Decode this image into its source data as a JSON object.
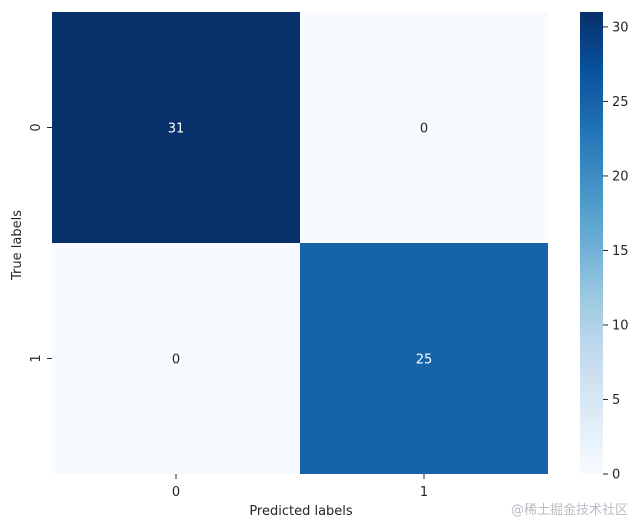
{
  "chart_data": {
    "type": "heatmap",
    "title": "",
    "xlabel": "Predicted labels",
    "ylabel": "True labels",
    "x_categories": [
      "0",
      "1"
    ],
    "y_categories": [
      "0",
      "1"
    ],
    "values": [
      [
        31,
        0
      ],
      [
        0,
        25
      ]
    ],
    "cell_labels": [
      [
        "31",
        "0"
      ],
      [
        "0",
        "25"
      ]
    ],
    "colormap": "Blues",
    "colormap_low": "#f7fbff",
    "colormap_high": "#08306b",
    "color_range": [
      0,
      31
    ],
    "colorbar": {
      "ticks": [
        0,
        5,
        10,
        15,
        20,
        25,
        30
      ],
      "tick_labels": [
        "0",
        "5",
        "10",
        "15",
        "20",
        "25",
        "30"
      ],
      "placement": "right"
    },
    "grid": false
  },
  "watermark": "@稀土掘金技术社区"
}
